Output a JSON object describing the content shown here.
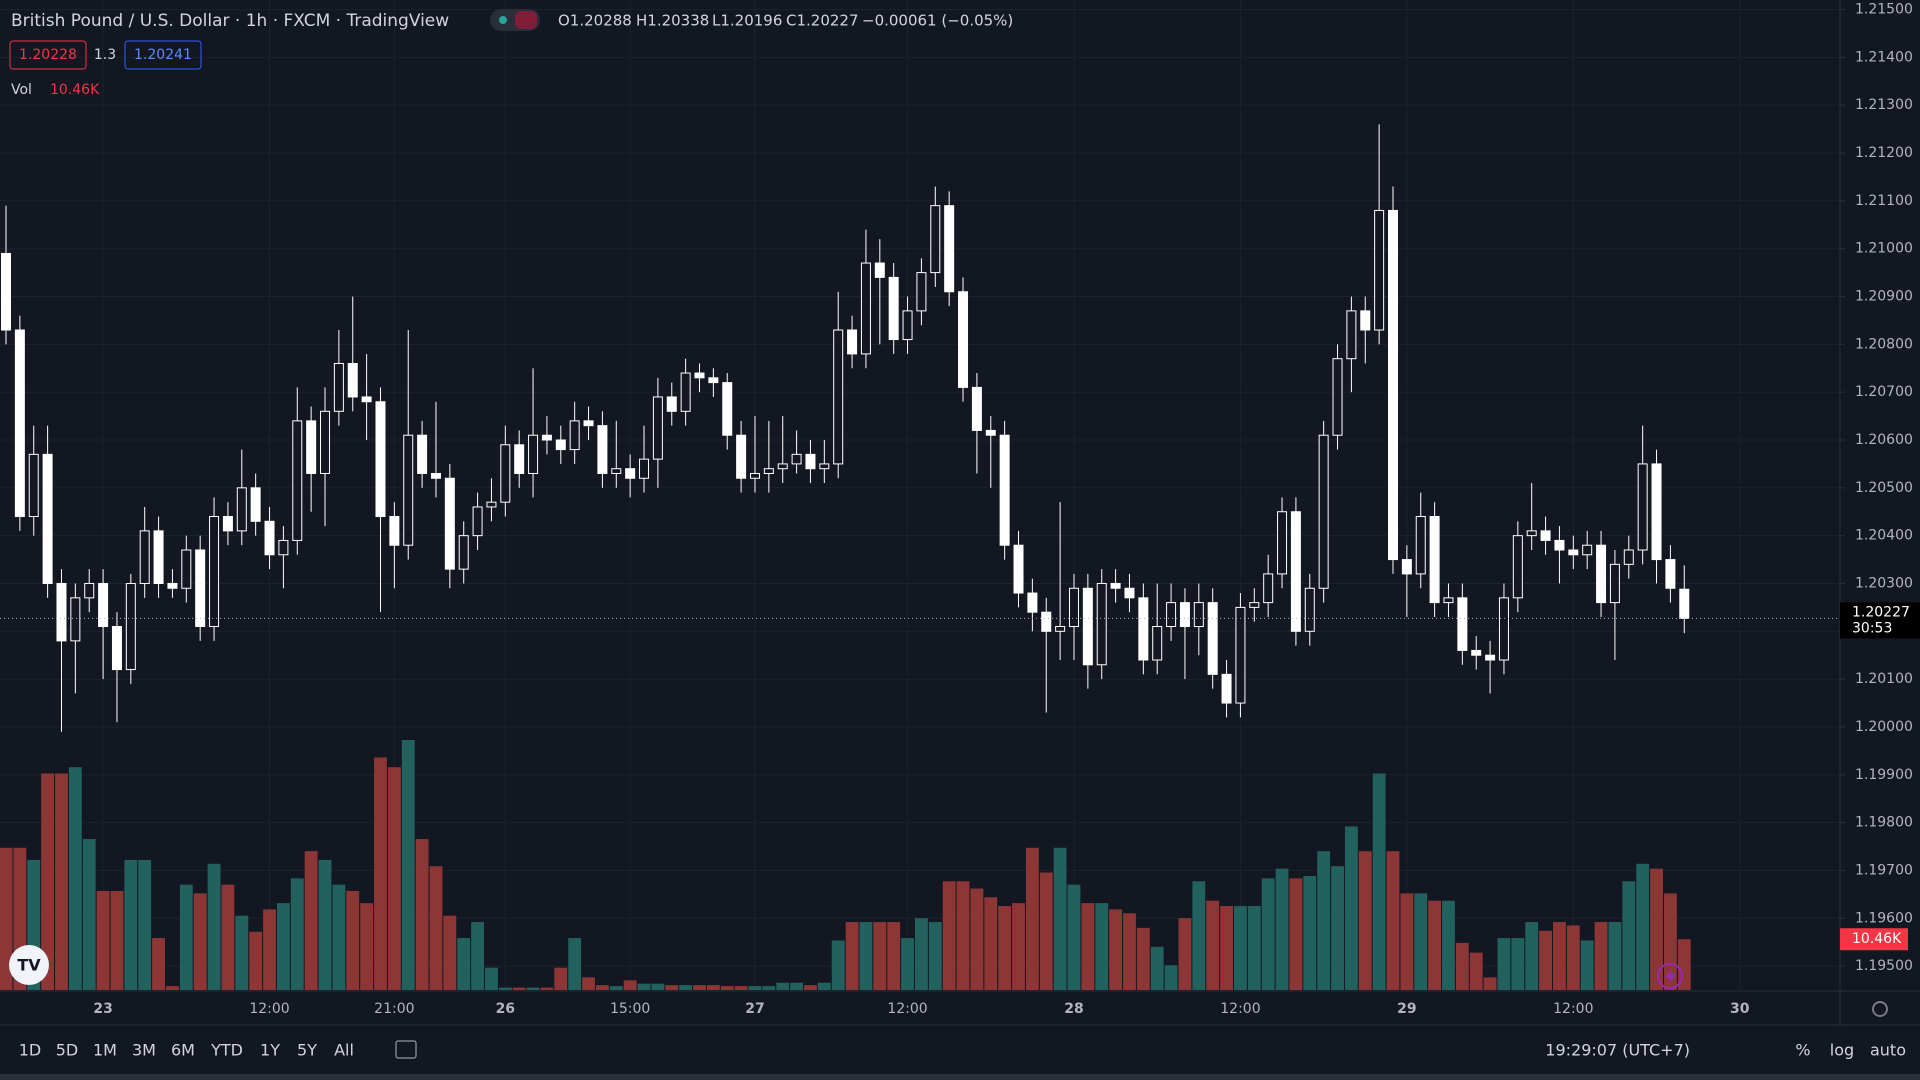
{
  "chart_data": {
    "type": "candlestick",
    "title": "British Pound / U.S. Dollar · 1h · FXCM · TradingView",
    "legend": {
      "open": "O1.20288",
      "high": "H1.20338",
      "low": "L1.20196",
      "close": "C1.20227",
      "change": "−0.00061 (−0.05%)"
    },
    "bid": "1.20228",
    "spread": "1.3",
    "ask": "1.20241",
    "volume_name": "Vol",
    "volume_label": "10.46K",
    "countdown": "30:53",
    "categories": [
      null,
      null,
      null,
      null,
      null,
      null,
      null,
      "23",
      null,
      null,
      null,
      null,
      null,
      null,
      null,
      null,
      null,
      null,
      null,
      "12:00",
      null,
      null,
      null,
      null,
      null,
      null,
      null,
      null,
      "21:00",
      null,
      null,
      null,
      null,
      null,
      null,
      null,
      "26",
      null,
      null,
      null,
      null,
      null,
      null,
      null,
      null,
      "15:00",
      null,
      null,
      null,
      null,
      null,
      null,
      null,
      null,
      "27",
      null,
      null,
      null,
      null,
      null,
      null,
      null,
      null,
      null,
      null,
      "12:00",
      null,
      null,
      null,
      null,
      null,
      null,
      null,
      null,
      null,
      null,
      null,
      "28",
      null,
      null,
      null,
      null,
      null,
      null,
      null,
      null,
      null,
      null,
      null,
      "12:00",
      null,
      null,
      null,
      null,
      null,
      null,
      null,
      null,
      null,
      null,
      null,
      "29",
      null,
      null,
      null,
      null,
      null,
      null,
      null,
      null,
      null,
      null,
      null,
      "12:00",
      null,
      null,
      null,
      null,
      null,
      null,
      null,
      null,
      null,
      null,
      null,
      "30"
    ],
    "open": [
      1.2099,
      1.2083,
      1.2044,
      1.2057,
      1.203,
      1.2018,
      1.2027,
      1.203,
      1.2021,
      1.2012,
      1.203,
      1.2041,
      1.203,
      1.2029,
      1.2037,
      1.2021,
      1.2044,
      1.2041,
      1.205,
      1.2043,
      1.2036,
      1.2039,
      1.2064,
      1.2053,
      1.2066,
      1.2076,
      1.2069,
      1.2068,
      1.2044,
      1.2038,
      1.2061,
      1.2053,
      1.2052,
      1.2033,
      1.204,
      1.2046,
      1.2047,
      1.2059,
      1.2053,
      1.2061,
      1.206,
      1.2058,
      1.2064,
      1.2063,
      1.2053,
      1.2054,
      1.2052,
      1.2056,
      1.2069,
      1.2066,
      1.2074,
      1.2073,
      1.2072,
      1.2061,
      1.2052,
      1.2053,
      1.2054,
      1.2055,
      1.2057,
      1.2054,
      1.2055,
      1.2083,
      1.2078,
      1.2097,
      1.2094,
      1.2081,
      1.2087,
      1.2095,
      1.2109,
      1.2091,
      1.2071,
      1.2062,
      1.2061,
      1.2038,
      1.2028,
      1.2024,
      1.202,
      1.2021,
      1.2029,
      1.2013,
      1.203,
      1.2029,
      1.2027,
      1.2014,
      1.2021,
      1.2026,
      1.2021,
      1.2026,
      1.2011,
      1.2005,
      1.2025,
      1.2026,
      1.2032,
      1.2045,
      1.202,
      1.2029,
      1.2061,
      1.2077,
      1.2087,
      1.2083,
      1.2108,
      1.2035,
      1.2032,
      1.2044,
      1.2026,
      1.2027,
      1.2016,
      1.2015,
      1.2014,
      1.2027,
      1.204,
      1.2041,
      1.2039,
      1.2037,
      1.2036,
      1.2038,
      1.2026,
      1.2034,
      1.2037,
      1.2055,
      1.2035,
      1.20288,
      null,
      null,
      null,
      null
    ],
    "high": [
      1.2109,
      1.2086,
      1.2063,
      1.2063,
      1.2033,
      1.203,
      1.2033,
      1.2033,
      1.2024,
      1.2032,
      1.2046,
      1.2044,
      1.2033,
      1.204,
      1.204,
      1.2048,
      1.2047,
      1.2058,
      1.2053,
      1.2046,
      1.2042,
      1.2071,
      1.2067,
      1.2071,
      1.2083,
      1.209,
      1.2078,
      1.2071,
      1.2047,
      1.2083,
      1.2064,
      1.2068,
      1.2055,
      1.2043,
      1.2049,
      1.2052,
      1.2063,
      1.2062,
      1.2075,
      1.2065,
      1.2063,
      1.2068,
      1.2067,
      1.2066,
      1.2064,
      1.2057,
      1.2063,
      1.2073,
      1.2072,
      1.2077,
      1.2076,
      1.2075,
      1.2074,
      1.2064,
      1.2065,
      1.2064,
      1.2065,
      1.2062,
      1.206,
      1.206,
      1.2091,
      1.2086,
      1.2104,
      1.2102,
      1.2097,
      1.209,
      1.2098,
      1.2113,
      1.2112,
      1.2094,
      1.2074,
      1.2065,
      1.2064,
      1.2041,
      1.2031,
      1.2027,
      1.2047,
      1.2032,
      1.2032,
      1.2033,
      1.2033,
      1.2032,
      1.203,
      1.203,
      1.203,
      1.2029,
      1.203,
      1.2029,
      1.2014,
      1.2028,
      1.2029,
      1.2036,
      1.2048,
      1.2048,
      1.2032,
      1.2064,
      1.208,
      1.209,
      1.209,
      1.2126,
      1.2113,
      1.2038,
      1.2049,
      1.2047,
      1.203,
      1.203,
      1.2019,
      1.2018,
      1.203,
      1.2043,
      1.2051,
      1.2044,
      1.2042,
      1.204,
      1.2041,
      1.2041,
      1.2037,
      1.204,
      1.2063,
      1.2058,
      1.2038,
      1.20338,
      null,
      null,
      null,
      null
    ],
    "low": [
      1.208,
      1.2041,
      1.204,
      1.2027,
      1.1999,
      1.2007,
      1.2024,
      1.201,
      1.2001,
      1.2009,
      1.2027,
      1.2027,
      1.2027,
      1.2026,
      1.2018,
      1.2018,
      1.2038,
      1.2038,
      1.204,
      1.2033,
      1.2029,
      1.2036,
      1.2045,
      1.2042,
      1.2063,
      1.2066,
      1.206,
      1.2024,
      1.2029,
      1.2035,
      1.205,
      1.2048,
      1.2029,
      1.203,
      1.2037,
      1.2043,
      1.2044,
      1.205,
      1.2048,
      1.2057,
      1.2055,
      1.2055,
      1.206,
      1.205,
      1.205,
      1.2048,
      1.2049,
      1.205,
      1.2063,
      1.2063,
      1.207,
      1.2069,
      1.2058,
      1.2049,
      1.2049,
      1.2049,
      1.2051,
      1.2053,
      1.2051,
      1.2051,
      1.2052,
      1.2075,
      1.2075,
      1.208,
      1.2078,
      1.2078,
      1.2084,
      1.2092,
      1.2088,
      1.2068,
      1.2053,
      1.205,
      1.2035,
      1.2025,
      1.202,
      1.2003,
      1.2014,
      1.2014,
      1.2008,
      1.201,
      1.2026,
      1.2024,
      1.2011,
      1.2011,
      1.2018,
      1.201,
      1.2015,
      1.2008,
      1.2002,
      1.2002,
      1.2022,
      1.2023,
      1.2029,
      1.2017,
      1.2017,
      1.2026,
      1.2058,
      1.207,
      1.2076,
      1.208,
      1.2032,
      1.2023,
      1.2029,
      1.2023,
      1.2023,
      1.2013,
      1.2012,
      1.2007,
      1.2011,
      1.2024,
      1.2037,
      1.2036,
      1.203,
      1.2033,
      1.2033,
      1.2023,
      1.2014,
      1.2031,
      1.2034,
      1.203,
      1.2026,
      1.20196,
      null,
      null,
      null,
      null
    ],
    "close": [
      1.2083,
      1.2044,
      1.2057,
      1.203,
      1.2018,
      1.2027,
      1.203,
      1.2021,
      1.2012,
      1.203,
      1.2041,
      1.203,
      1.2029,
      1.2037,
      1.2021,
      1.2044,
      1.2041,
      1.205,
      1.2043,
      1.2036,
      1.2039,
      1.2064,
      1.2053,
      1.2066,
      1.2076,
      1.2069,
      1.2068,
      1.2044,
      1.2038,
      1.2061,
      1.2053,
      1.2052,
      1.2033,
      1.204,
      1.2046,
      1.2047,
      1.2059,
      1.2053,
      1.2061,
      1.206,
      1.2058,
      1.2064,
      1.2063,
      1.2053,
      1.2054,
      1.2052,
      1.2056,
      1.2069,
      1.2066,
      1.2074,
      1.2073,
      1.2072,
      1.2061,
      1.2052,
      1.2053,
      1.2054,
      1.2055,
      1.2057,
      1.2054,
      1.2055,
      1.2083,
      1.2078,
      1.2097,
      1.2094,
      1.2081,
      1.2087,
      1.2095,
      1.2109,
      1.2091,
      1.2071,
      1.2062,
      1.2061,
      1.2038,
      1.2028,
      1.2024,
      1.202,
      1.2021,
      1.2029,
      1.2013,
      1.203,
      1.2029,
      1.2027,
      1.2014,
      1.2021,
      1.2026,
      1.2021,
      1.2026,
      1.2011,
      1.2005,
      1.2025,
      1.2026,
      1.2032,
      1.2045,
      1.202,
      1.2029,
      1.2061,
      1.2077,
      1.2087,
      1.2083,
      1.2108,
      1.2035,
      1.2032,
      1.2044,
      1.2026,
      1.2027,
      1.2016,
      1.2015,
      1.2014,
      1.2027,
      1.204,
      1.2041,
      1.2039,
      1.2037,
      1.2036,
      1.2038,
      1.2026,
      1.2034,
      1.2037,
      1.2055,
      1.2035,
      1.2029,
      1.20227,
      null,
      null,
      null,
      null
    ],
    "volume": [
      29300,
      29300,
      26800,
      44600,
      44600,
      45900,
      31100,
      20400,
      20400,
      26800,
      26800,
      10700,
      800,
      21700,
      19900,
      26000,
      21700,
      15300,
      12000,
      16600,
      17900,
      23000,
      28600,
      26800,
      21700,
      20400,
      17900,
      47900,
      45900,
      51500,
      31100,
      25500,
      15300,
      10700,
      14000,
      4600,
      500,
      500,
      500,
      500,
      4600,
      10700,
      2600,
      1000,
      800,
      2000,
      1300,
      1300,
      1000,
      1000,
      1000,
      1000,
      800,
      800,
      800,
      800,
      1500,
      1500,
      1000,
      1500,
      10200,
      14000,
      14000,
      14000,
      14000,
      10700,
      14800,
      14000,
      22400,
      22400,
      20900,
      19100,
      17300,
      17900,
      29300,
      24200,
      29300,
      21700,
      17900,
      17900,
      16600,
      15800,
      12800,
      8900,
      5100,
      14800,
      22400,
      18400,
      17300,
      17300,
      17300,
      23000,
      25000,
      23000,
      23500,
      28600,
      25500,
      33700,
      28600,
      44600,
      28600,
      19900,
      19900,
      18400,
      18400,
      9700,
      7700,
      2600,
      10700,
      10700,
      14000,
      12200,
      14000,
      13300,
      10200,
      14000,
      14000,
      22400,
      26000,
      25000,
      19900,
      10460,
      null,
      null,
      null,
      null
    ],
    "up_color": "#131722",
    "down_color": "#ffffff",
    "candle_border": "#ffffff",
    "volume_up_color": "#22615e",
    "volume_down_color": "#8c3636",
    "ylim": [
      1.1945,
      1.2152
    ],
    "yticks": [
      {
        "value": 1.195,
        "label": "1.19500"
      },
      {
        "value": 1.196,
        "label": "1.19600"
      },
      {
        "value": 1.197,
        "label": "1.19700"
      },
      {
        "value": 1.198,
        "label": "1.19800"
      },
      {
        "value": 1.199,
        "label": "1.19900"
      },
      {
        "value": 1.2,
        "label": "1.20000"
      },
      {
        "value": 1.201,
        "label": "1.20100"
      },
      {
        "value": 1.202,
        "label": "1.20200"
      },
      {
        "value": 1.203,
        "label": "1.20300"
      },
      {
        "value": 1.204,
        "label": "1.20400"
      },
      {
        "value": 1.205,
        "label": "1.20500"
      },
      {
        "value": 1.206,
        "label": "1.20600"
      },
      {
        "value": 1.207,
        "label": "1.20700"
      },
      {
        "value": 1.208,
        "label": "1.20800"
      },
      {
        "value": 1.209,
        "label": "1.20900"
      },
      {
        "value": 1.21,
        "label": "1.21000"
      },
      {
        "value": 1.211,
        "label": "1.21100"
      },
      {
        "value": 1.212,
        "label": "1.21200"
      },
      {
        "value": 1.213,
        "label": "1.21300"
      },
      {
        "value": 1.214,
        "label": "1.21400"
      },
      {
        "value": 1.215,
        "label": "1.21500"
      }
    ],
    "grid": true
  },
  "toolbar": {
    "ranges": [
      "1D",
      "5D",
      "1M",
      "3M",
      "6M",
      "YTD",
      "1Y",
      "5Y",
      "All"
    ],
    "clock": "19:29:07 (UTC+7)",
    "percent": "%",
    "log": "log",
    "auto": "auto"
  }
}
